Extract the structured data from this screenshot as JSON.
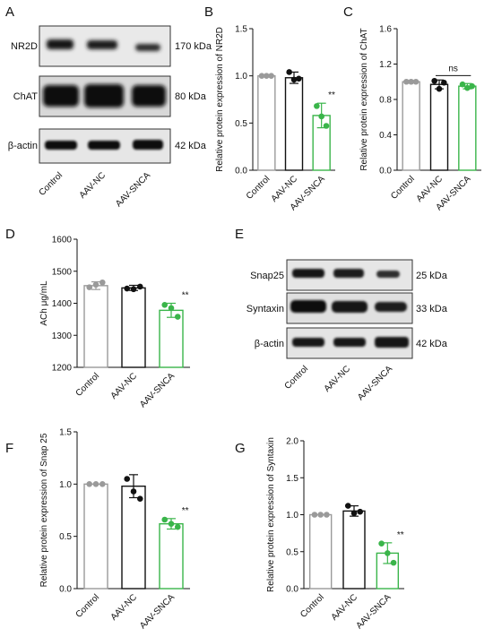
{
  "panels": {
    "A": {
      "letter": "A",
      "bands": [
        {
          "label": "NR2D",
          "size": "170 kDa"
        },
        {
          "label": "ChAT",
          "size": "80 kDa"
        },
        {
          "label": "β-actin",
          "size": "42 kDa"
        }
      ],
      "lanes": [
        "Control",
        "AAV-NC",
        "AAV-SNCA"
      ]
    },
    "B": {
      "letter": "B"
    },
    "C": {
      "letter": "C"
    },
    "D": {
      "letter": "D"
    },
    "E": {
      "letter": "E",
      "bands": [
        {
          "label": "Snap25",
          "size": "25 kDa"
        },
        {
          "label": "Syntaxin",
          "size": "33 kDa"
        },
        {
          "label": "β-actin",
          "size": "42 kDa"
        }
      ],
      "lanes": [
        "Control",
        "AAV-NC",
        "AAV-SNCA"
      ]
    },
    "F": {
      "letter": "F"
    },
    "G": {
      "letter": "G"
    }
  },
  "colors": {
    "control": "#9a9a9a",
    "nc": "#111111",
    "snca": "#3ab54a"
  },
  "chart_data": [
    {
      "id": "B",
      "type": "bar",
      "categories": [
        "Control",
        "AAV-NC",
        "AAV-SNCA"
      ],
      "values": [
        1.0,
        0.98,
        0.58
      ],
      "errors": [
        0.0,
        0.06,
        0.13
      ],
      "points": [
        [
          1.0,
          1.0,
          1.0
        ],
        [
          1.04,
          0.96,
          0.97
        ],
        [
          0.68,
          0.57,
          0.47
        ]
      ],
      "ylabel": "Relative protein expression of NR2D",
      "ylim": [
        0,
        1.5
      ],
      "yticks": [
        0.0,
        0.5,
        1.0,
        1.5
      ],
      "annotations": [
        {
          "category": "AAV-SNCA",
          "text": "**"
        }
      ]
    },
    {
      "id": "C",
      "type": "bar",
      "categories": [
        "Control",
        "AAV-NC",
        "AAV-SNCA"
      ],
      "values": [
        1.0,
        0.97,
        0.95
      ],
      "errors": [
        0.0,
        0.05,
        0.03
      ],
      "points": [
        [
          1.0,
          1.0,
          1.0
        ],
        [
          1.01,
          0.92,
          0.99
        ],
        [
          0.97,
          0.93,
          0.95
        ]
      ],
      "ylabel": "Relative protein expression of ChAT",
      "ylim": [
        0,
        1.6
      ],
      "yticks": [
        0.0,
        0.4,
        0.8,
        1.2,
        1.6
      ],
      "annotations": [
        {
          "category": "AAV-NC-AAV-SNCA",
          "text": "ns"
        }
      ]
    },
    {
      "id": "D",
      "type": "bar",
      "categories": [
        "Control",
        "AAV-NC",
        "AAV-SNCA"
      ],
      "values": [
        1455,
        1448,
        1378
      ],
      "errors": [
        12,
        8,
        22
      ],
      "points": [
        [
          1450,
          1458,
          1465
        ],
        [
          1446,
          1444,
          1452
        ],
        [
          1395,
          1385,
          1358
        ]
      ],
      "ylabel": "ACh μg/mL",
      "ylim": [
        1200,
        1600
      ],
      "yticks": [
        1200,
        1300,
        1400,
        1500,
        1600
      ],
      "annotations": [
        {
          "category": "AAV-SNCA",
          "text": "**"
        }
      ]
    },
    {
      "id": "F",
      "type": "bar",
      "categories": [
        "Control",
        "AAV-NC",
        "AAV-SNCA"
      ],
      "values": [
        1.0,
        0.98,
        0.62
      ],
      "errors": [
        0.0,
        0.11,
        0.05
      ],
      "points": [
        [
          1.0,
          1.0,
          1.0
        ],
        [
          1.05,
          0.93,
          0.86
        ],
        [
          0.66,
          0.62,
          0.59
        ]
      ],
      "ylabel": "Relative protein expression of Snap 25",
      "ylim": [
        0,
        1.5
      ],
      "yticks": [
        0.0,
        0.5,
        1.0,
        1.5
      ],
      "annotations": [
        {
          "category": "AAV-SNCA",
          "text": "**"
        }
      ]
    },
    {
      "id": "G",
      "type": "bar",
      "categories": [
        "Control",
        "AAV-NC",
        "AAV-SNCA"
      ],
      "values": [
        1.0,
        1.05,
        0.48
      ],
      "errors": [
        0.0,
        0.07,
        0.14
      ],
      "points": [
        [
          1.0,
          1.0,
          1.0
        ],
        [
          1.12,
          1.02,
          1.04
        ],
        [
          0.61,
          0.48,
          0.35
        ]
      ],
      "ylabel": "Relative protein expression of Syntaxin",
      "ylim": [
        0,
        2.0
      ],
      "yticks": [
        0.0,
        0.5,
        1.0,
        1.5,
        2.0
      ],
      "annotations": [
        {
          "category": "AAV-SNCA",
          "text": "**"
        }
      ]
    }
  ]
}
